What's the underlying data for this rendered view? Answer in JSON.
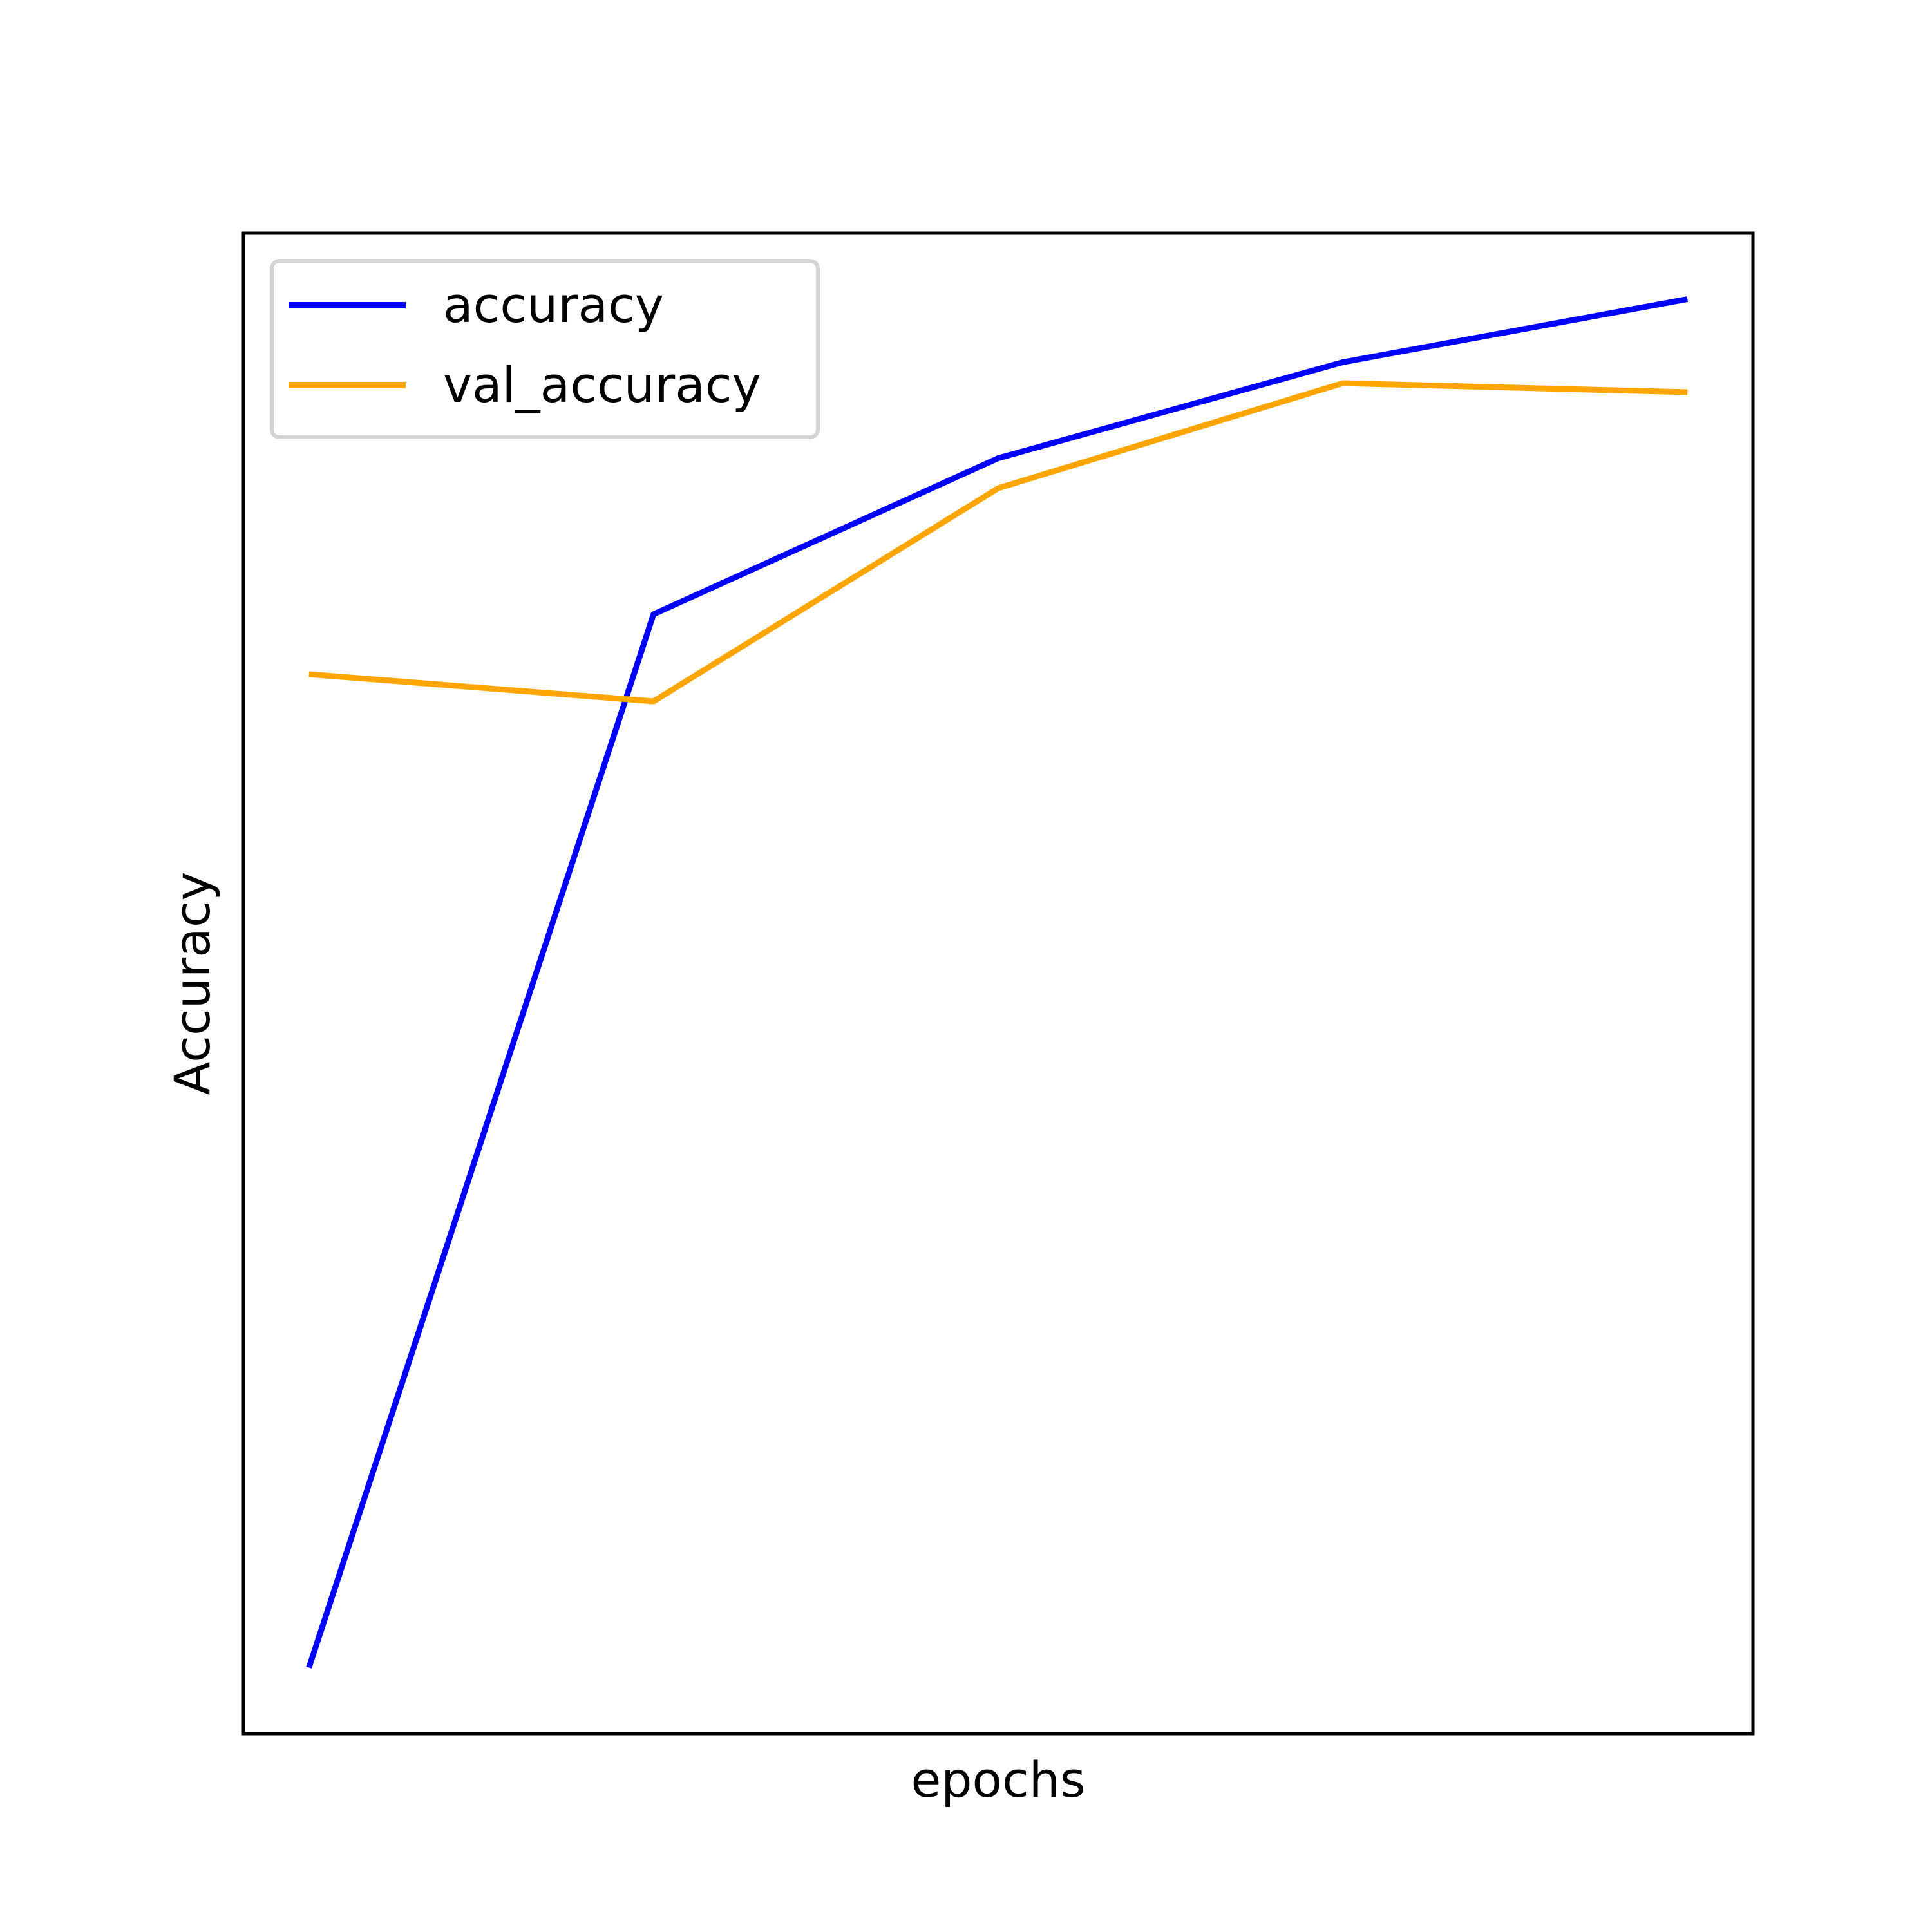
{
  "chart_data": {
    "type": "line",
    "title": "",
    "xlabel": "epochs",
    "ylabel": "Accuracy",
    "x": [
      1,
      2,
      3,
      4,
      5
    ],
    "xlim": [
      0.81,
      5.19
    ],
    "ylim": [
      0.4,
      0.9
    ],
    "grid": false,
    "ticks_shown": false,
    "legend_position": "upper-left",
    "series": [
      {
        "name": "accuracy",
        "color": "#0000ff",
        "values": [
          0.422,
          0.773,
          0.825,
          0.857,
          0.878
        ]
      },
      {
        "name": "val_accuracy",
        "color": "#ffa500",
        "values": [
          0.753,
          0.744,
          0.815,
          0.85,
          0.847
        ]
      }
    ]
  }
}
